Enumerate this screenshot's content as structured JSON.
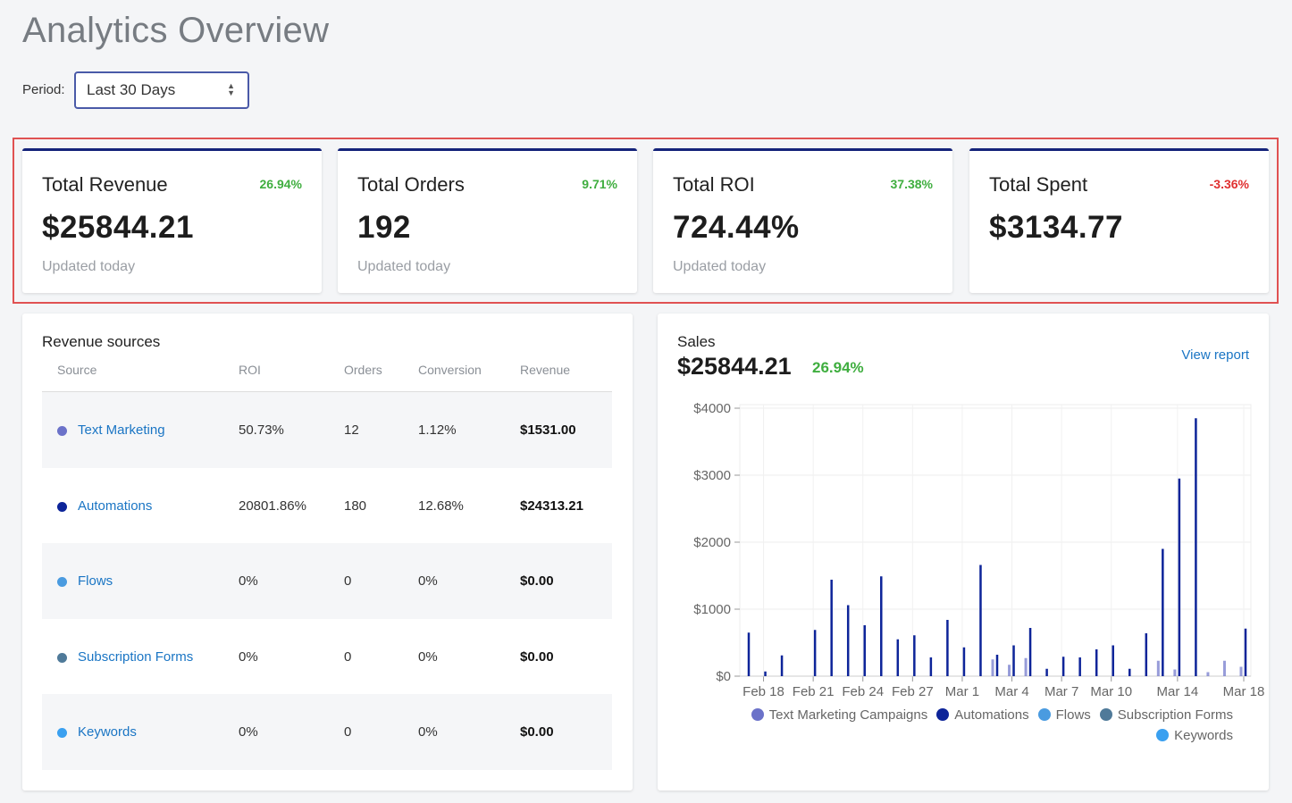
{
  "page": {
    "title": "Analytics Overview"
  },
  "period": {
    "label": "Period:",
    "value": "Last 30 Days"
  },
  "kpis": [
    {
      "title": "Total Revenue",
      "change": "26.94%",
      "change_color": "#3fae3f",
      "value": "$25844.21",
      "sub": "Updated today"
    },
    {
      "title": "Total Orders",
      "change": "9.71%",
      "change_color": "#3fae3f",
      "value": "192",
      "sub": "Updated today"
    },
    {
      "title": "Total ROI",
      "change": "37.38%",
      "change_color": "#3fae3f",
      "value": "724.44%",
      "sub": "Updated today"
    },
    {
      "title": "Total Spent",
      "change": "-3.36%",
      "change_color": "#e03030",
      "value": "$3134.77",
      "sub": ""
    }
  ],
  "revenue_sources": {
    "title": "Revenue sources",
    "columns": [
      "Source",
      "ROI",
      "Orders",
      "Conversion",
      "Revenue"
    ],
    "rows": [
      {
        "source": "Text Marketing",
        "color": "#6b72c9",
        "roi": "50.73%",
        "orders": "12",
        "conversion": "1.12%",
        "revenue": "$1531.00"
      },
      {
        "source": "Automations",
        "color": "#0d2499",
        "roi": "20801.86%",
        "orders": "180",
        "conversion": "12.68%",
        "revenue": "$24313.21"
      },
      {
        "source": "Flows",
        "color": "#4a9be0",
        "roi": "0%",
        "orders": "0",
        "conversion": "0%",
        "revenue": "$0.00"
      },
      {
        "source": "Subscription Forms",
        "color": "#4f7a99",
        "roi": "0%",
        "orders": "0",
        "conversion": "0%",
        "revenue": "$0.00"
      },
      {
        "source": "Keywords",
        "color": "#3aa0f0",
        "roi": "0%",
        "orders": "0",
        "conversion": "0%",
        "revenue": "$0.00"
      }
    ]
  },
  "sales": {
    "label": "Sales",
    "total": "$25844.21",
    "change": "26.94%",
    "view_report": "View report"
  },
  "chart_data": {
    "type": "bar",
    "categories": [
      "Feb 17",
      "Feb 18",
      "Feb 19",
      "Feb 20",
      "Feb 21",
      "Feb 22",
      "Feb 23",
      "Feb 24",
      "Feb 25",
      "Feb 26",
      "Feb 27",
      "Feb 28",
      "Feb 29",
      "Mar 1",
      "Mar 2",
      "Mar 3",
      "Mar 4",
      "Mar 5",
      "Mar 6",
      "Mar 7",
      "Mar 8",
      "Mar 9",
      "Mar 10",
      "Mar 11",
      "Mar 12",
      "Mar 13",
      "Mar 14",
      "Mar 15",
      "Mar 16",
      "Mar 17",
      "Mar 18"
    ],
    "tick_labels": [
      "Feb 18",
      "Feb 21",
      "Feb 24",
      "Feb 27",
      "Mar 1",
      "Mar 4",
      "Mar 7",
      "Mar 10",
      "Mar 14",
      "Mar 18"
    ],
    "y_ticks": [
      "$0",
      "$1000",
      "$2000",
      "$3000",
      "$4000"
    ],
    "ylim": [
      0,
      4000
    ],
    "grid": true,
    "legend_position": "bottom-right",
    "series": [
      {
        "name": "Text Marketing Campaigns",
        "color": "#6b72c9",
        "values": [
          0,
          0,
          0,
          0,
          0,
          0,
          0,
          0,
          0,
          0,
          0,
          0,
          0,
          0,
          0,
          250,
          170,
          270,
          0,
          0,
          0,
          0,
          0,
          0,
          0,
          230,
          100,
          0,
          60,
          230,
          140
        ]
      },
      {
        "name": "Automations",
        "color": "#0d2499",
        "values": [
          650,
          70,
          310,
          0,
          690,
          1440,
          1060,
          760,
          1490,
          550,
          610,
          280,
          840,
          430,
          1660,
          320,
          460,
          720,
          110,
          290,
          280,
          400,
          460,
          110,
          640,
          1900,
          2950,
          3850,
          0,
          0,
          710
        ]
      },
      {
        "name": "Flows",
        "color": "#4a9be0",
        "values": [
          0,
          0,
          0,
          0,
          0,
          0,
          0,
          0,
          0,
          0,
          0,
          0,
          0,
          0,
          0,
          0,
          0,
          0,
          0,
          0,
          0,
          0,
          0,
          0,
          0,
          0,
          0,
          0,
          0,
          0,
          0
        ]
      },
      {
        "name": "Subscription Forms",
        "color": "#4f7a99",
        "values": [
          0,
          0,
          0,
          0,
          0,
          0,
          0,
          0,
          0,
          0,
          0,
          0,
          0,
          0,
          0,
          0,
          0,
          0,
          0,
          0,
          0,
          0,
          0,
          0,
          0,
          0,
          0,
          0,
          0,
          0,
          0
        ]
      },
      {
        "name": "Keywords",
        "color": "#3aa0f0",
        "values": [
          0,
          0,
          0,
          0,
          0,
          0,
          0,
          0,
          0,
          0,
          0,
          0,
          0,
          0,
          0,
          0,
          0,
          0,
          0,
          0,
          0,
          0,
          0,
          0,
          0,
          0,
          0,
          0,
          0,
          0,
          0
        ]
      }
    ]
  }
}
